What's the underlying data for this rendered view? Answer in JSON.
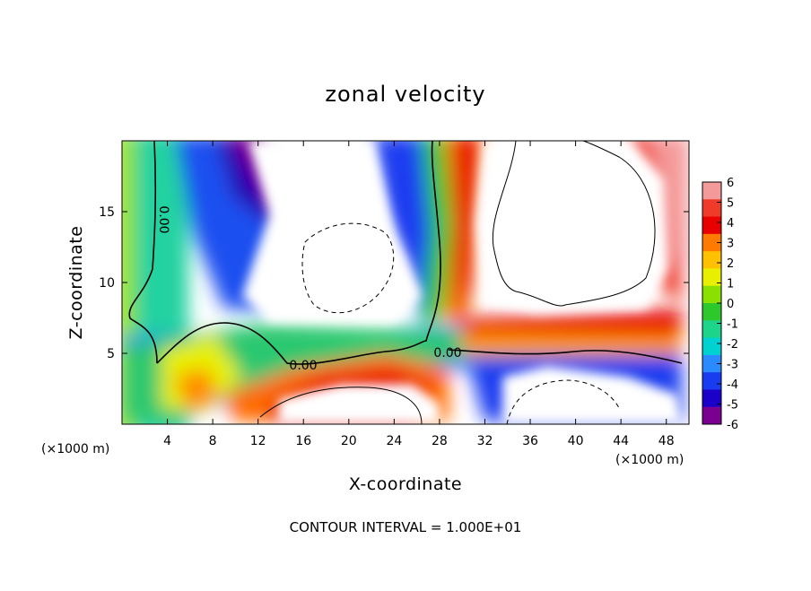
{
  "chart_data": {
    "type": "heatmap",
    "title": "zonal velocity",
    "xlabel": "X-coordinate",
    "ylabel": "Z-coordinate",
    "x_unit_note": "(×1000 m)",
    "y_unit_note": "(×1000 m)",
    "xlim": [
      0,
      50
    ],
    "ylim": [
      0,
      20
    ],
    "x_ticks": [
      4,
      8,
      12,
      16,
      20,
      24,
      28,
      32,
      36,
      40,
      44,
      48
    ],
    "y_ticks": [
      5,
      10,
      15
    ],
    "colorbar": {
      "ticks": [
        6,
        5,
        4,
        3,
        2,
        1,
        0,
        -1,
        -2,
        -3,
        -4,
        -5,
        -6
      ],
      "colors": [
        "#f49a9a",
        "#f03b2a",
        "#e80000",
        "#ff7a00",
        "#ffc000",
        "#e8f000",
        "#8ae000",
        "#2cc82c",
        "#1cd48a",
        "#00d2d2",
        "#2a8aff",
        "#1a3cf0",
        "#1a00c8",
        "#7a0090"
      ]
    },
    "contour_labels": [
      "0.00",
      "0.00",
      "0.00"
    ],
    "footer": "CONTOUR INTERVAL = 1.000E+01",
    "colors": {
      "out_of_range": "#ffffff"
    },
    "grid": false,
    "legend": "right colorbar"
  }
}
